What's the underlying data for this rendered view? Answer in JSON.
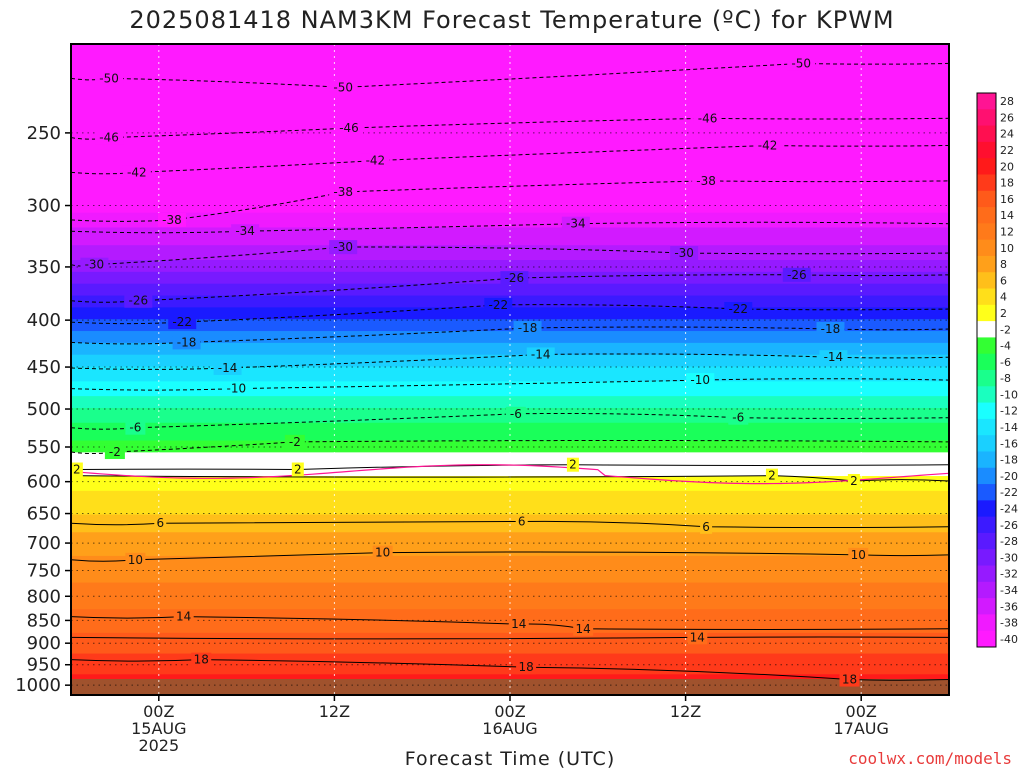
{
  "chart_data": {
    "type": "heatmap",
    "title": "2025081418 NAM3KM Forecast Temperature (ºC) for KPWM",
    "xlabel": "Forecast Time (UTC)",
    "ylabel": "",
    "credit": "coolwx.com/models",
    "y_axis": {
      "scale": "log",
      "reversed": true,
      "range_hpa": [
        1025,
        200
      ],
      "ticks": [
        250,
        300,
        350,
        400,
        450,
        500,
        550,
        600,
        650,
        700,
        750,
        800,
        850,
        900,
        950,
        1000
      ]
    },
    "x_axis": {
      "range_hours": [
        18,
        78
      ],
      "ticks": [
        {
          "hour": 24,
          "lines": [
            "00Z",
            "15AUG",
            "2025"
          ]
        },
        {
          "hour": 36,
          "lines": [
            "12Z"
          ]
        },
        {
          "hour": 48,
          "lines": [
            "00Z",
            "16AUG"
          ]
        },
        {
          "hour": 60,
          "lines": [
            "12Z"
          ]
        },
        {
          "hour": 72,
          "lines": [
            "00Z",
            "17AUG"
          ]
        }
      ]
    },
    "grid": true,
    "colorbar": {
      "placement": "right",
      "labels": [
        "28",
        "26",
        "24",
        "22",
        "20",
        "18",
        "16",
        "14",
        "12",
        "10",
        "8",
        "6",
        "4",
        "2",
        "-2",
        "-4",
        "-6",
        "-8",
        "-10",
        "-12",
        "-14",
        "-16",
        "-18",
        "-20",
        "-22",
        "-24",
        "-26",
        "-28",
        "-30",
        "-32",
        "-34",
        "-36",
        "-38",
        "-40"
      ],
      "colors": [
        "#ff1493",
        "#ff1070",
        "#ff0f50",
        "#ff0f2f",
        "#ff1a1a",
        "#ff3a1a",
        "#ff5a1a",
        "#ff6c1a",
        "#ff7a1a",
        "#ff8c1a",
        "#ffa01a",
        "#ffbf1a",
        "#ffdf1a",
        "#ffff1a",
        "#ffffff",
        "#33ff33",
        "#1aff5a",
        "#1aff8c",
        "#1affbf",
        "#1affff",
        "#1ae6ff",
        "#1ad0ff",
        "#1ab4ff",
        "#1a8cff",
        "#1a5aff",
        "#1a1aff",
        "#3c1aff",
        "#5a1aff",
        "#781aff",
        "#961aff",
        "#b41aff",
        "#d21aff",
        "#f01aff",
        "#ff1aff"
      ]
    },
    "temperature_profile": {
      "levels_hpa": [
        200,
        250,
        300,
        350,
        400,
        450,
        500,
        550,
        600,
        650,
        700,
        750,
        800,
        850,
        900,
        950,
        1000
      ],
      "temps_c": [
        -53,
        -45,
        -39,
        -31,
        -22,
        -14,
        -8,
        -3,
        3,
        6,
        9,
        11,
        13,
        15,
        17,
        19,
        21
      ]
    },
    "contours": [
      {
        "value": "-50",
        "positions": [
          [
            20.6,
            218
          ],
          [
            36.6,
            223
          ],
          [
            67.9,
            210
          ]
        ]
      },
      {
        "value": "-46",
        "positions": [
          [
            20.6,
            253
          ],
          [
            37.0,
            247
          ],
          [
            61.5,
            241
          ]
        ]
      },
      {
        "value": "-42",
        "positions": [
          [
            22.5,
            276
          ],
          [
            38.8,
            268
          ],
          [
            65.6,
            258
          ]
        ]
      },
      {
        "value": "-38",
        "positions": [
          [
            24.9,
            311
          ],
          [
            36.6,
            290
          ],
          [
            61.4,
            282
          ]
        ]
      },
      {
        "value": "-34",
        "positions": [
          [
            29.9,
            320
          ],
          [
            52.5,
            314
          ]
        ]
      },
      {
        "value": "-30",
        "positions": [
          [
            19.6,
            348
          ],
          [
            36.6,
            333
          ],
          [
            59.9,
            338
          ]
        ]
      },
      {
        "value": "-26",
        "positions": [
          [
            22.6,
            381
          ],
          [
            48.3,
            360
          ],
          [
            67.6,
            357
          ]
        ]
      },
      {
        "value": "-22",
        "positions": [
          [
            25.6,
            402
          ],
          [
            47.2,
            385
          ],
          [
            63.6,
            389
          ]
        ]
      },
      {
        "value": "-18",
        "positions": [
          [
            25.9,
            423
          ],
          [
            49.2,
            408
          ],
          [
            69.9,
            409
          ]
        ]
      },
      {
        "value": "-14",
        "positions": [
          [
            28.7,
            451
          ],
          [
            50.1,
            436
          ],
          [
            70.1,
            439
          ]
        ]
      },
      {
        "value": "-10",
        "positions": [
          [
            29.3,
            475
          ],
          [
            61.0,
            465
          ]
        ]
      },
      {
        "value": "-6",
        "positions": [
          [
            22.4,
            524
          ],
          [
            48.4,
            506
          ],
          [
            63.6,
            511
          ]
        ]
      },
      {
        "value": "-2",
        "positions": [
          [
            21.0,
            557
          ],
          [
            33.3,
            543
          ]
        ]
      },
      {
        "value": "2",
        "positions": [
          [
            18.4,
            582
          ],
          [
            33.5,
            582
          ],
          [
            52.3,
            575
          ]
        ]
      },
      {
        "value": "2",
        "positions": [
          [
            65.9,
            591
          ],
          [
            71.5,
            599
          ]
        ]
      },
      {
        "value": "6",
        "positions": [
          [
            24.1,
            666
          ],
          [
            48.8,
            663
          ],
          [
            61.4,
            672
          ]
        ]
      },
      {
        "value": "10",
        "positions": [
          [
            22.4,
            730
          ],
          [
            39.3,
            717
          ],
          [
            71.8,
            721
          ]
        ]
      },
      {
        "value": "14",
        "positions": [
          [
            25.7,
            842
          ],
          [
            48.6,
            858
          ],
          [
            53.0,
            868
          ]
        ]
      },
      {
        "value": "14",
        "positions": [
          [
            60.8,
            887
          ]
        ]
      },
      {
        "value": "18",
        "positions": [
          [
            26.9,
            938
          ],
          [
            49.1,
            956
          ],
          [
            71.2,
            986
          ]
        ]
      }
    ]
  }
}
